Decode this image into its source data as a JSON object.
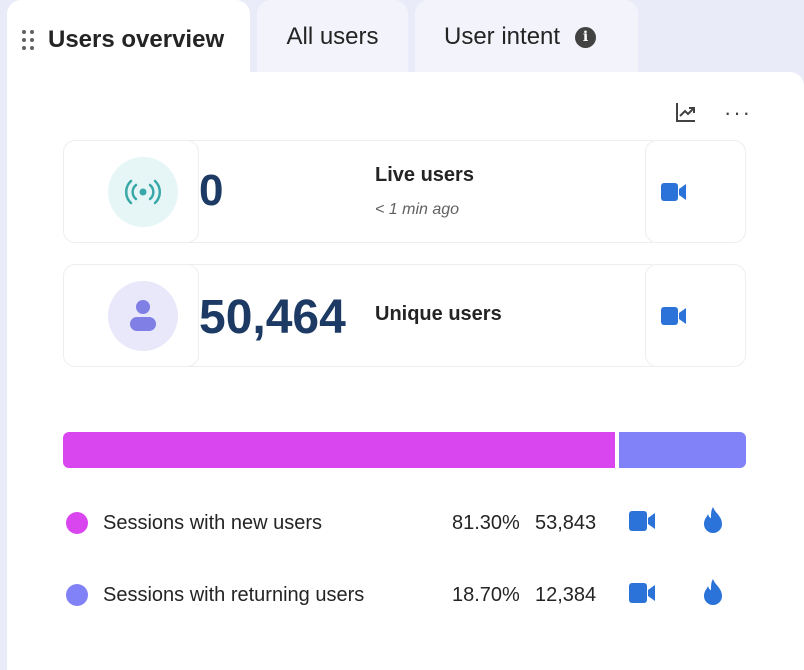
{
  "tabs": [
    {
      "label": "Users overview",
      "active": true
    },
    {
      "label": "All users",
      "active": false
    },
    {
      "label": "User intent",
      "active": false
    }
  ],
  "icons": {
    "drag": "drag-handle-icon",
    "info": "info-icon",
    "chart": "trend-chart-icon",
    "more": "more-icon",
    "live": "broadcast-icon",
    "user": "person-icon",
    "video": "video-camera-icon",
    "fire": "fire-icon"
  },
  "info_glyph": "i",
  "more_glyph": "···",
  "stats": {
    "live": {
      "value": "0",
      "label": "Live users",
      "subtext": "< 1 min ago"
    },
    "unique": {
      "value": "50,464",
      "label": "Unique users"
    }
  },
  "sessions": {
    "new": {
      "label": "Sessions with new users",
      "percent": "81.30%",
      "count": "53,843",
      "share": 0.813,
      "color": "#d946ef"
    },
    "returning": {
      "label": "Sessions with returning users",
      "percent": "18.70%",
      "count": "12,384",
      "share": 0.187,
      "color": "#8182f7"
    }
  },
  "colors": {
    "accent_blue": "#2b73d8",
    "number_color": "#1c3a63",
    "live_teal": "#3aa8a8",
    "user_purple": "#7f7fe6"
  }
}
